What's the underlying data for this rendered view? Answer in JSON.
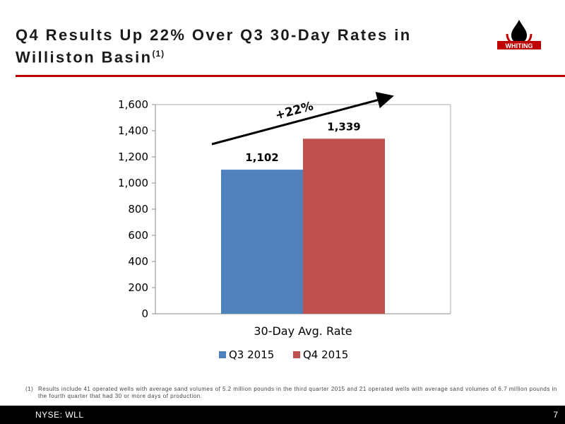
{
  "header": {
    "title": "Q4 Results Up 22%  Over Q3 30-Day Rates in Williston Basin",
    "title_sup": "(1)"
  },
  "logo": {
    "text": "WHITING",
    "color": "#c00000"
  },
  "colors": {
    "accent": "#c00000",
    "q3": "#4f81bd",
    "q4": "#c0504d"
  },
  "chart_data": {
    "type": "bar",
    "categories": [
      "30-Day Avg. Rate"
    ],
    "series": [
      {
        "name": "Q3 2015",
        "values": [
          1102
        ],
        "color": "#4f81bd",
        "label": "1,102"
      },
      {
        "name": "Q4 2015",
        "values": [
          1339
        ],
        "color": "#c0504d",
        "label": "1,339"
      }
    ],
    "ylim": [
      0,
      1600
    ],
    "yticks": [
      "0",
      "200",
      "400",
      "600",
      "800",
      "1,000",
      "1,200",
      "1,400",
      "1,600"
    ],
    "grid": false,
    "legend": "bottom",
    "annotation": "+22%"
  },
  "footnote": {
    "number": "(1)",
    "text": "Results include 41 operated wells with average sand volumes of 5.2 million pounds in the third quarter 2015 and 21 operated wells with average sand volumes of 6.7 million pounds in the fourth quarter that had 30 or more days of production."
  },
  "footer": {
    "ticker": "NYSE: WLL",
    "page": "7"
  }
}
